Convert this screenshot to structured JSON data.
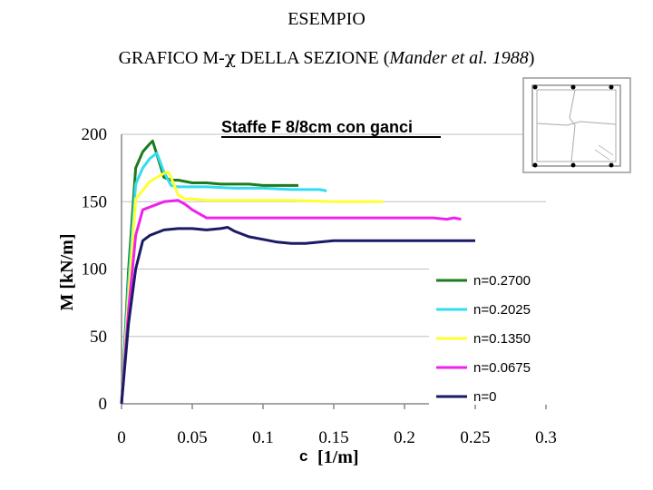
{
  "header": {
    "line1": "ESEMPIO",
    "line2_prefix": "GRAFICO M-",
    "line2_chi": "χ",
    "line2_middle": " DELLA SEZIONE (",
    "line2_italic": "Mander et al. 1988",
    "line2_suffix": ")"
  },
  "chart_data": {
    "type": "line",
    "title": "Staffe F 8/8cm con ganci",
    "xlabel_symbol": "c",
    "xlabel_unit": "[1/m]",
    "ylabel": "M [kN/m]",
    "xlim": [
      0,
      0.3
    ],
    "ylim": [
      0,
      200
    ],
    "x_ticks": [
      "0",
      "0.05",
      "0.1",
      "0.15",
      "0.2",
      "0.25",
      "0.3"
    ],
    "y_ticks": [
      "0",
      "50",
      "100",
      "150",
      "200"
    ],
    "grid": "horizontal",
    "legend_position": "bottom-right",
    "series": [
      {
        "name": "n=0.2700",
        "color": "#1e7a1e",
        "x": [
          0,
          0.005,
          0.01,
          0.015,
          0.02,
          0.022,
          0.025,
          0.03,
          0.035,
          0.04,
          0.05,
          0.06,
          0.07,
          0.09,
          0.1,
          0.12,
          0.125
        ],
        "y": [
          0,
          100,
          175,
          187,
          193,
          195,
          185,
          168,
          166,
          166,
          164,
          164,
          163,
          163,
          162,
          162,
          162
        ]
      },
      {
        "name": "n=0.2025",
        "color": "#33ddee",
        "x": [
          0,
          0.005,
          0.01,
          0.015,
          0.02,
          0.025,
          0.03,
          0.035,
          0.04,
          0.06,
          0.08,
          0.1,
          0.12,
          0.14,
          0.145
        ],
        "y": [
          0,
          90,
          163,
          175,
          182,
          186,
          172,
          162,
          161,
          161,
          160,
          160,
          159,
          159,
          158
        ]
      },
      {
        "name": "n=0.1350",
        "color": "#ffff33",
        "x": [
          0,
          0.005,
          0.01,
          0.02,
          0.03,
          0.033,
          0.035,
          0.04,
          0.045,
          0.05,
          0.06,
          0.08,
          0.1,
          0.12,
          0.15,
          0.185
        ],
        "y": [
          0,
          80,
          152,
          165,
          171,
          172,
          168,
          155,
          152,
          152,
          151,
          151,
          151,
          151,
          150,
          150
        ]
      },
      {
        "name": "n=0.0675",
        "color": "#ee22ee",
        "x": [
          0,
          0.005,
          0.01,
          0.015,
          0.02,
          0.03,
          0.04,
          0.045,
          0.05,
          0.06,
          0.08,
          0.1,
          0.15,
          0.2,
          0.22,
          0.23,
          0.235,
          0.24
        ],
        "y": [
          0,
          70,
          125,
          144,
          146,
          150,
          151,
          148,
          144,
          138,
          138,
          138,
          138,
          138,
          138,
          137,
          138,
          137
        ]
      },
      {
        "name": "n=0",
        "color": "#1a1a66",
        "x": [
          0,
          0.005,
          0.01,
          0.015,
          0.02,
          0.03,
          0.04,
          0.05,
          0.06,
          0.07,
          0.075,
          0.08,
          0.09,
          0.1,
          0.11,
          0.12,
          0.13,
          0.14,
          0.15,
          0.2,
          0.25
        ],
        "y": [
          0,
          60,
          100,
          121,
          125,
          129,
          130,
          130,
          129,
          130,
          131,
          128,
          124,
          122,
          120,
          119,
          119,
          120,
          121,
          121,
          121
        ]
      }
    ]
  }
}
